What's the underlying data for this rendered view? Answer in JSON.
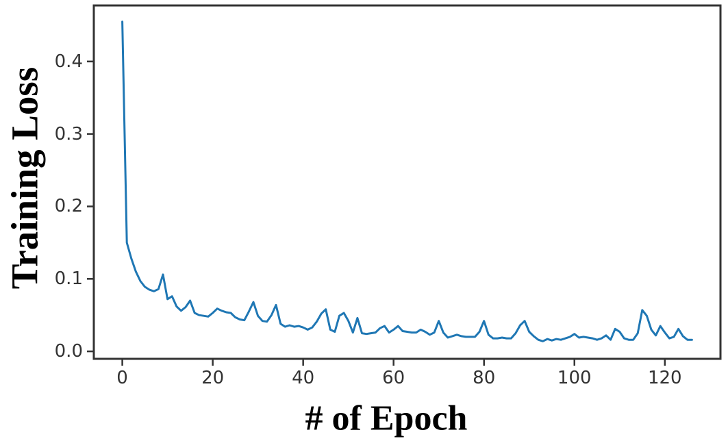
{
  "figure": {
    "background": "#ffffff"
  },
  "chart": {
    "ylabel": "Training Loss",
    "xlabel": "# of Epoch"
  },
  "chart_data": {
    "type": "line",
    "title": "",
    "xlabel": "# of Epoch",
    "ylabel": "Training Loss",
    "grid": false,
    "legend": null,
    "xlim": [
      -6.3,
      132.3
    ],
    "ylim": [
      -0.0103,
      0.4773
    ],
    "x_tick_values": [
      0,
      20,
      40,
      60,
      80,
      100,
      120
    ],
    "x_tick_labels": [
      "0",
      "20",
      "40",
      "60",
      "80",
      "100",
      "120"
    ],
    "y_tick_values": [
      0.0,
      0.1,
      0.2,
      0.3,
      0.4
    ],
    "y_tick_labels": [
      "0.0",
      "0.1",
      "0.2",
      "0.3",
      "0.4"
    ],
    "line_color": "#1f77b4",
    "line_width": 3,
    "spine_color": "#333333",
    "tick_color": "#333333",
    "series": [
      {
        "name": "training-loss",
        "x_start": 0,
        "x_step": 1,
        "y": [
          0.455,
          0.15,
          0.128,
          0.11,
          0.097,
          0.089,
          0.085,
          0.083,
          0.086,
          0.106,
          0.072,
          0.076,
          0.062,
          0.056,
          0.061,
          0.07,
          0.053,
          0.05,
          0.049,
          0.048,
          0.053,
          0.059,
          0.056,
          0.054,
          0.053,
          0.047,
          0.044,
          0.043,
          0.055,
          0.068,
          0.049,
          0.042,
          0.041,
          0.05,
          0.064,
          0.038,
          0.034,
          0.036,
          0.034,
          0.035,
          0.033,
          0.03,
          0.033,
          0.041,
          0.052,
          0.058,
          0.03,
          0.027,
          0.049,
          0.053,
          0.042,
          0.026,
          0.046,
          0.025,
          0.024,
          0.025,
          0.026,
          0.032,
          0.035,
          0.026,
          0.03,
          0.035,
          0.028,
          0.027,
          0.026,
          0.026,
          0.03,
          0.027,
          0.023,
          0.026,
          0.042,
          0.026,
          0.019,
          0.021,
          0.023,
          0.021,
          0.02,
          0.02,
          0.02,
          0.027,
          0.042,
          0.023,
          0.018,
          0.018,
          0.019,
          0.018,
          0.018,
          0.025,
          0.036,
          0.042,
          0.027,
          0.021,
          0.016,
          0.014,
          0.017,
          0.015,
          0.017,
          0.016,
          0.018,
          0.02,
          0.024,
          0.019,
          0.02,
          0.019,
          0.018,
          0.016,
          0.018,
          0.022,
          0.016,
          0.031,
          0.027,
          0.018,
          0.016,
          0.016,
          0.025,
          0.057,
          0.049,
          0.03,
          0.022,
          0.035,
          0.026,
          0.018,
          0.02,
          0.031,
          0.021,
          0.016,
          0.016
        ]
      }
    ]
  }
}
